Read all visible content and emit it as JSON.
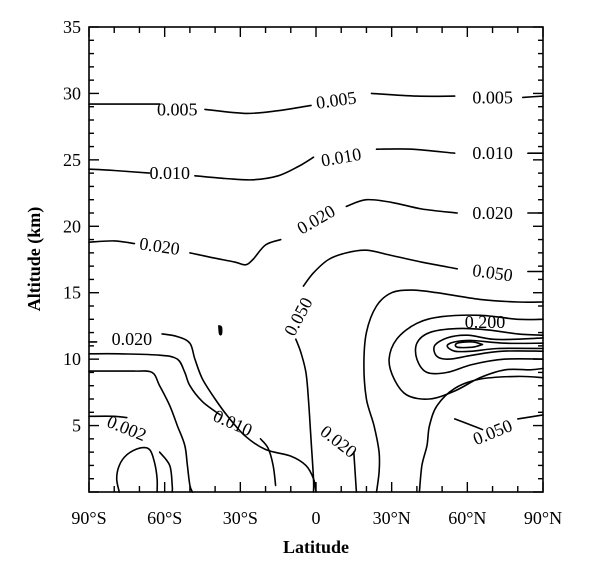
{
  "chart_data": {
    "type": "contour",
    "title": "",
    "xlabel": "Latitude",
    "ylabel": "Altitude (km)",
    "xlim": [
      -90,
      90
    ],
    "ylim": [
      0,
      35
    ],
    "x_ticks": [
      {
        "value": -90,
        "label": "90°S"
      },
      {
        "value": -60,
        "label": "60°S"
      },
      {
        "value": -30,
        "label": "30°S"
      },
      {
        "value": 0,
        "label": "0"
      },
      {
        "value": 30,
        "label": "30°N"
      },
      {
        "value": 60,
        "label": "60°N"
      },
      {
        "value": 90,
        "label": "90°N"
      }
    ],
    "y_ticks": [
      {
        "value": 5,
        "label": "5"
      },
      {
        "value": 10,
        "label": "10"
      },
      {
        "value": 15,
        "label": "15"
      },
      {
        "value": 20,
        "label": "20"
      },
      {
        "value": 25,
        "label": "25"
      },
      {
        "value": 30,
        "label": "30"
      },
      {
        "value": 35,
        "label": "35"
      }
    ],
    "contour_levels": [
      "0.002",
      "0.005",
      "0.010",
      "0.020",
      "0.050",
      "0.200"
    ],
    "labels": [
      {
        "text": "0.005",
        "lat": -55,
        "alt": 28.8,
        "angle": 0
      },
      {
        "text": "0.005",
        "lat": 8,
        "alt": 29.5,
        "angle": -8
      },
      {
        "text": "0.005",
        "lat": 70,
        "alt": 29.7,
        "angle": 0
      },
      {
        "text": "0.010",
        "lat": -58,
        "alt": 24.0,
        "angle": 0
      },
      {
        "text": "0.010",
        "lat": 10,
        "alt": 25.2,
        "angle": -10
      },
      {
        "text": "0.010",
        "lat": 70,
        "alt": 25.5,
        "angle": 0
      },
      {
        "text": "0.020",
        "lat": -62,
        "alt": 18.5,
        "angle": 8
      },
      {
        "text": "0.020",
        "lat": 0,
        "alt": 20.5,
        "angle": -30
      },
      {
        "text": "0.020",
        "lat": 70,
        "alt": 21.0,
        "angle": 0
      },
      {
        "text": "0.050",
        "lat": 70,
        "alt": 16.5,
        "angle": 8
      },
      {
        "text": "0.050",
        "lat": -7,
        "alt": 13.2,
        "angle": -62
      },
      {
        "text": "0.200",
        "lat": 67,
        "alt": 12.8,
        "angle": 0
      },
      {
        "text": "0.020",
        "lat": -73,
        "alt": 11.5,
        "angle": 0
      },
      {
        "text": "0.010",
        "lat": -33,
        "alt": 5.2,
        "angle": 24
      },
      {
        "text": "0.020",
        "lat": 9,
        "alt": 3.8,
        "angle": 38
      },
      {
        "text": "0.002",
        "lat": -75,
        "alt": 4.8,
        "angle": 22
      },
      {
        "text": "0.050",
        "lat": 70,
        "alt": 4.5,
        "angle": -22
      }
    ],
    "contours": [
      {
        "level": "0.005",
        "points": [
          [
            -90,
            29.2
          ],
          [
            -82,
            29.2
          ],
          [
            -62,
            29.2
          ]
        ]
      },
      {
        "level": "0.005",
        "points": [
          [
            -44,
            28.8
          ],
          [
            -28,
            28.5
          ],
          [
            -15,
            28.7
          ],
          [
            -5,
            29.0
          ],
          [
            -2,
            29.1
          ]
        ]
      },
      {
        "level": "0.005",
        "points": [
          [
            22,
            30.0
          ],
          [
            40,
            29.8
          ],
          [
            55,
            29.8
          ]
        ]
      },
      {
        "level": "0.005",
        "points": [
          [
            82,
            29.7
          ],
          [
            90,
            29.8
          ]
        ]
      },
      {
        "level": "0.010",
        "points": [
          [
            -90,
            24.3
          ],
          [
            -80,
            24.2
          ],
          [
            -66,
            24.0
          ]
        ]
      },
      {
        "level": "0.010",
        "points": [
          [
            -48,
            23.8
          ],
          [
            -36,
            23.6
          ],
          [
            -25,
            23.5
          ],
          [
            -15,
            23.8
          ],
          [
            -7,
            24.5
          ],
          [
            -1,
            25.2
          ]
        ]
      },
      {
        "level": "0.010",
        "points": [
          [
            24,
            25.8
          ],
          [
            38,
            25.8
          ],
          [
            55,
            25.5
          ]
        ]
      },
      {
        "level": "0.010",
        "points": [
          [
            84,
            25.5
          ],
          [
            90,
            25.5
          ]
        ]
      },
      {
        "level": "0.020",
        "points": [
          [
            -90,
            18.8
          ],
          [
            -80,
            18.9
          ],
          [
            -72,
            18.7
          ]
        ]
      },
      {
        "level": "0.020",
        "points": [
          [
            -50,
            18.0
          ],
          [
            -40,
            17.6
          ],
          [
            -32,
            17.3
          ],
          [
            -28,
            17.1
          ],
          [
            -25,
            17.5
          ],
          [
            -20,
            18.6
          ],
          [
            -14,
            19.0
          ]
        ]
      },
      {
        "level": "0.020",
        "points": [
          [
            12,
            21.5
          ],
          [
            20,
            22.0
          ],
          [
            30,
            21.8
          ],
          [
            42,
            21.3
          ],
          [
            56,
            21.0
          ]
        ]
      },
      {
        "level": "0.020",
        "points": [
          [
            84,
            21.0
          ],
          [
            90,
            21.0
          ]
        ]
      },
      {
        "level": "0.050",
        "points": [
          [
            -8,
            11.5
          ],
          [
            -6,
            10.5
          ],
          [
            -4,
            9.0
          ],
          [
            -3,
            7.0
          ],
          [
            -2,
            4.0
          ],
          [
            -1,
            1.0
          ],
          [
            -1,
            0.0
          ]
        ]
      },
      {
        "level": "0.050",
        "points": [
          [
            -5,
            15.5
          ],
          [
            -1,
            16.5
          ],
          [
            5,
            17.5
          ],
          [
            12,
            18.0
          ],
          [
            20,
            18.2
          ],
          [
            30,
            17.8
          ],
          [
            42,
            17.3
          ],
          [
            56,
            16.8
          ]
        ]
      },
      {
        "level": "0.050",
        "points": [
          [
            84,
            16.6
          ],
          [
            90,
            16.6
          ]
        ]
      },
      {
        "level": "0.050",
        "points": [
          [
            90,
            14.3
          ],
          [
            80,
            14.3
          ],
          [
            65,
            14.5
          ],
          [
            48,
            15.0
          ],
          [
            38,
            15.2
          ],
          [
            30,
            15.0
          ],
          [
            24,
            14.0
          ],
          [
            20,
            12.0
          ],
          [
            19,
            9.5
          ],
          [
            20,
            7.0
          ],
          [
            23,
            5.0
          ],
          [
            25,
            3.0
          ],
          [
            25,
            1.5
          ],
          [
            24,
            0.0
          ]
        ]
      },
      {
        "level": "0.050",
        "points": [
          [
            90,
            8.6
          ],
          [
            80,
            8.7
          ],
          [
            65,
            8.5
          ],
          [
            55,
            7.8
          ],
          [
            48,
            6.5
          ],
          [
            45,
            5.0
          ],
          [
            44,
            3.5
          ],
          [
            42,
            2.0
          ],
          [
            41,
            0.0
          ]
        ]
      },
      {
        "level": "0.050",
        "points": [
          [
            55,
            5.5
          ],
          [
            62,
            5.0
          ],
          [
            66,
            4.7
          ]
        ]
      },
      {
        "level": "0.050",
        "points": [
          [
            80,
            5.5
          ],
          [
            90,
            5.8
          ]
        ]
      },
      {
        "level": "inner-1",
        "points": [
          [
            90,
            13.0
          ],
          [
            80,
            13.0
          ],
          [
            65,
            13.3
          ],
          [
            50,
            13.2
          ],
          [
            40,
            12.7
          ],
          [
            32,
            11.5
          ],
          [
            29,
            10.0
          ],
          [
            31,
            8.5
          ],
          [
            36,
            7.3
          ],
          [
            45,
            7.0
          ],
          [
            55,
            7.6
          ],
          [
            65,
            8.6
          ],
          [
            75,
            9.2
          ],
          [
            85,
            9.2
          ],
          [
            90,
            9.3
          ]
        ]
      },
      {
        "level": "inner-2",
        "points": [
          [
            90,
            11.8
          ],
          [
            80,
            11.9
          ],
          [
            68,
            12.2
          ],
          [
            56,
            12.3
          ],
          [
            45,
            12.0
          ],
          [
            40,
            11.2
          ],
          [
            40,
            10.0
          ],
          [
            44,
            9.0
          ],
          [
            52,
            9.0
          ],
          [
            62,
            9.6
          ],
          [
            75,
            10.0
          ],
          [
            90,
            10.0
          ]
        ]
      },
      {
        "level": "0.200",
        "points": [
          [
            90,
            11.6
          ],
          [
            80,
            11.5
          ],
          [
            70,
            11.5
          ],
          [
            60,
            11.8
          ],
          [
            52,
            11.6
          ],
          [
            47,
            11.0
          ],
          [
            48,
            10.2
          ],
          [
            53,
            10.0
          ],
          [
            62,
            10.3
          ],
          [
            74,
            10.6
          ],
          [
            90,
            10.6
          ]
        ]
      },
      {
        "level": "inner-3",
        "points": [
          [
            90,
            11.2
          ],
          [
            75,
            11.2
          ],
          [
            62,
            11.4
          ],
          [
            55,
            11.3
          ],
          [
            52,
            11.0
          ],
          [
            55,
            10.6
          ],
          [
            62,
            10.6
          ],
          [
            72,
            10.8
          ],
          [
            90,
            10.8
          ]
        ]
      },
      {
        "level": "inner-4",
        "points": [
          [
            66,
            11.1
          ],
          [
            62,
            11.3
          ],
          [
            56,
            11.2
          ],
          [
            56,
            10.9
          ],
          [
            62,
            10.9
          ],
          [
            66,
            11.1
          ]
        ]
      },
      {
        "level": "0.020",
        "points": [
          [
            -90,
            10.4
          ],
          [
            -78,
            10.4
          ],
          [
            -62,
            10.3
          ],
          [
            -55,
            10.0
          ],
          [
            -52,
            9.0
          ],
          [
            -50,
            8.0
          ],
          [
            -45,
            6.8
          ],
          [
            -38,
            5.8
          ]
        ]
      },
      {
        "level": "0.020",
        "points": [
          [
            -61,
            11.9
          ],
          [
            -55,
            11.7
          ],
          [
            -50,
            11.2
          ],
          [
            -48,
            10.0
          ],
          [
            -45,
            8.5
          ],
          [
            -40,
            7.0
          ],
          [
            -35,
            5.7
          ],
          [
            -28,
            4.2
          ],
          [
            -20,
            3.2
          ],
          [
            -10,
            2.7
          ],
          [
            -4,
            2.0
          ],
          [
            -1,
            1.0
          ],
          [
            0,
            0.0
          ]
        ]
      },
      {
        "level": "0.020",
        "points": [
          [
            15,
            3.0
          ],
          [
            16,
            0.0
          ]
        ]
      },
      {
        "level": "0.010",
        "points": [
          [
            -90,
            9.1
          ],
          [
            -82,
            9.1
          ],
          [
            -72,
            9.1
          ],
          [
            -65,
            9.0
          ],
          [
            -62,
            8.0
          ],
          [
            -58,
            6.5
          ],
          [
            -55,
            5.0
          ],
          [
            -52,
            3.5
          ],
          [
            -51,
            2.0
          ],
          [
            -50,
            0.5
          ],
          [
            -49,
            0.0
          ]
        ]
      },
      {
        "level": "0.010",
        "points": [
          [
            -22,
            4.0
          ],
          [
            -19,
            3.3
          ],
          [
            -17,
            2.0
          ],
          [
            -16,
            0.5
          ]
        ]
      },
      {
        "level": "0.002",
        "points": [
          [
            -90,
            5.7
          ],
          [
            -80,
            5.7
          ],
          [
            -75,
            5.6
          ]
        ]
      },
      {
        "level": "0.002",
        "points": [
          [
            -62,
            3.0
          ],
          [
            -58,
            2.0
          ],
          [
            -57,
            0.5
          ],
          [
            -57,
            0.0
          ]
        ]
      },
      {
        "level": "loop",
        "points": [
          [
            -78,
            0.0
          ],
          [
            -79,
            1.0
          ],
          [
            -78,
            2.0
          ],
          [
            -75,
            2.8
          ],
          [
            -70,
            3.3
          ],
          [
            -66,
            3.2
          ],
          [
            -64,
            2.2
          ],
          [
            -63,
            1.0
          ],
          [
            -63,
            0.0
          ]
        ]
      },
      {
        "level": "blob",
        "points": [
          [
            -38.5,
            12.5
          ],
          [
            -37.5,
            12.4
          ],
          [
            -37.5,
            11.9
          ],
          [
            -38.2,
            11.9
          ],
          [
            -38.5,
            12.5
          ]
        ]
      },
      {
        "level": "line",
        "points": [
          [
            -90,
            11.3
          ],
          [
            -87,
            11.3
          ]
        ]
      }
    ]
  }
}
